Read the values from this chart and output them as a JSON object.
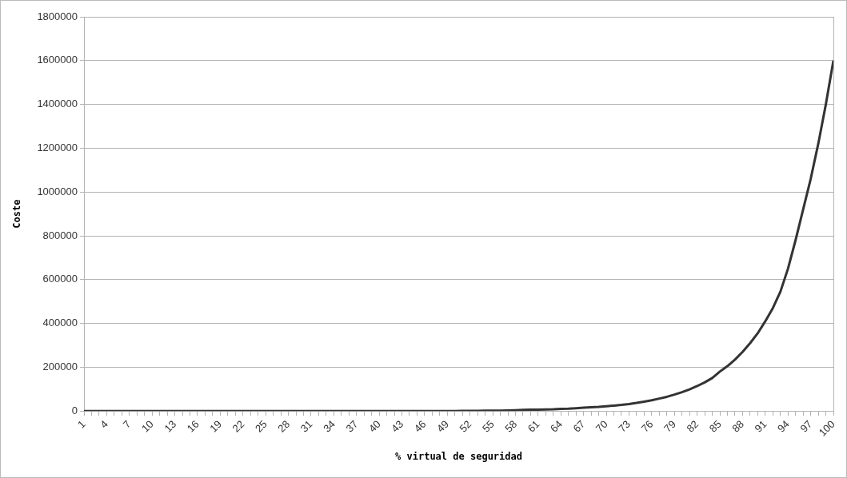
{
  "chart_data": {
    "type": "line",
    "xlabel": "% virtual de seguridad",
    "ylabel": "Coste",
    "categories": [
      "1",
      null,
      null,
      "4",
      null,
      null,
      "7",
      null,
      null,
      "10",
      null,
      null,
      "13",
      null,
      null,
      "16",
      null,
      null,
      "19",
      null,
      null,
      "22",
      null,
      null,
      "25",
      null,
      null,
      "28",
      null,
      null,
      "31",
      null,
      null,
      "34",
      null,
      null,
      "37",
      null,
      null,
      "40",
      null,
      null,
      "43",
      null,
      null,
      "46",
      null,
      null,
      "49",
      null,
      null,
      "52",
      null,
      null,
      "55",
      null,
      null,
      "58",
      null,
      null,
      "61",
      null,
      null,
      "64",
      null,
      null,
      "67",
      null,
      null,
      "70",
      null,
      null,
      "73",
      null,
      null,
      "76",
      null,
      null,
      "79",
      null,
      null,
      "82",
      null,
      null,
      "85",
      null,
      null,
      "88",
      null,
      null,
      "91",
      null,
      null,
      "94",
      null,
      null,
      "97",
      null,
      null,
      "100"
    ],
    "series": [
      {
        "color": "#333333",
        "values": [
          0,
          0,
          0,
          0,
          0,
          0,
          0,
          0,
          0,
          0,
          0,
          0,
          0,
          0,
          0,
          0,
          0,
          0,
          0,
          0,
          0,
          0,
          0,
          0,
          0,
          0,
          0,
          0,
          0,
          0,
          0,
          0,
          0,
          0,
          0,
          0,
          0,
          0,
          0,
          0,
          0,
          0,
          0,
          0,
          0,
          0,
          0,
          0,
          0,
          0,
          1000,
          1000,
          1000,
          2000,
          2000,
          2000,
          3000,
          4000,
          5000,
          6000,
          6000,
          7000,
          8000,
          10000,
          11000,
          13000,
          15000,
          17000,
          19000,
          22000,
          25000,
          28000,
          32000,
          37000,
          43000,
          49000,
          57000,
          65000,
          75000,
          86000,
          99000,
          114000,
          131000,
          151000,
          180000,
          205000,
          235000,
          270000,
          310000,
          355000,
          410000,
          470000,
          545000,
          650000,
          780000,
          920000,
          1060000,
          1220000,
          1400000,
          1600000
        ]
      }
    ],
    "ylim": [
      0,
      1800000
    ],
    "yticks": [
      0,
      200000,
      400000,
      600000,
      800000,
      1000000,
      1200000,
      1400000,
      1600000,
      1800000
    ],
    "grid": "y",
    "legend": false,
    "marker": "none",
    "line_style": "solid"
  }
}
